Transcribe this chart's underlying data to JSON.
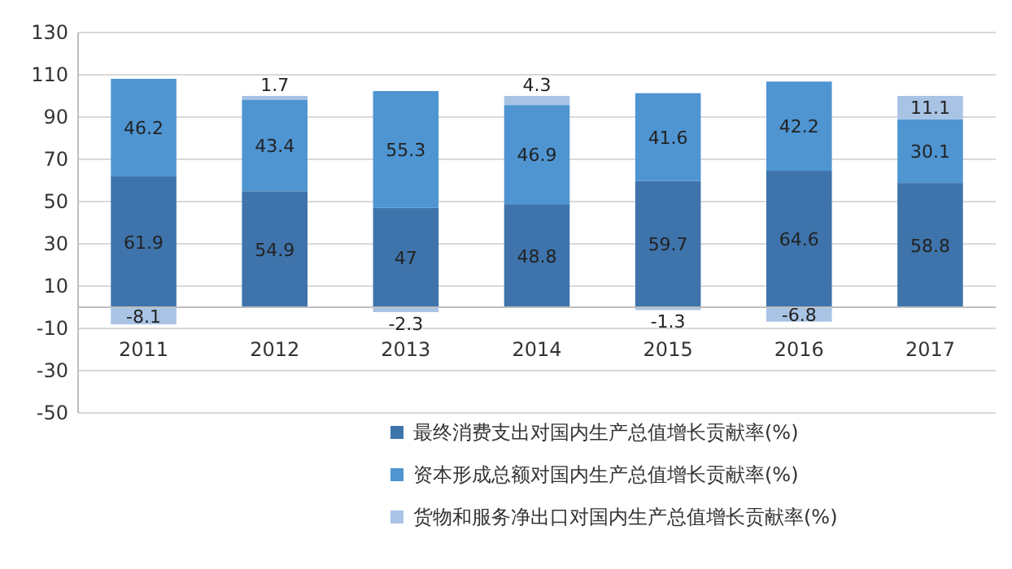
{
  "chart_data": {
    "type": "bar",
    "stacked": true,
    "categories": [
      "2011",
      "2012",
      "2013",
      "2014",
      "2015",
      "2016",
      "2017"
    ],
    "series": [
      {
        "name": "最终消费支出对国内生产总值增长贡献率(%)",
        "color": "#3e74ab",
        "values": [
          61.9,
          54.9,
          47,
          48.8,
          59.7,
          64.6,
          58.8
        ]
      },
      {
        "name": "资本形成总额对国内生产总值增长贡献率(%)",
        "color": "#4f95d2",
        "values": [
          46.2,
          43.4,
          55.3,
          46.9,
          41.6,
          42.2,
          30.1
        ]
      },
      {
        "name": "货物和服务净出口对国内生产总值增长贡献率(%)",
        "color": "#a9c3e5",
        "values": [
          -8.1,
          1.7,
          -2.3,
          4.3,
          -1.3,
          -6.8,
          11.1
        ]
      }
    ],
    "ylim": [
      -50,
      130
    ],
    "yticks": [
      -50,
      -30,
      -10,
      10,
      30,
      50,
      70,
      90,
      110,
      130
    ],
    "grid": "y",
    "legend": "bottom",
    "data_labels": true
  }
}
